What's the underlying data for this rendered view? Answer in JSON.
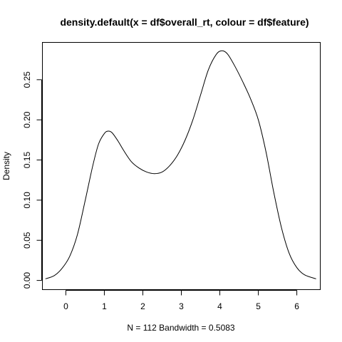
{
  "chart_data": {
    "type": "line",
    "title": "density.default(x = df$overall_rt, colour = df$feature)",
    "xlabel": "N = 112   Bandwidth = 0.5083",
    "ylabel": "Density",
    "xlim": [
      -0.6,
      6.6
    ],
    "ylim": [
      -0.011,
      0.296
    ],
    "x_ticks": [
      0,
      1,
      2,
      3,
      4,
      5,
      6
    ],
    "y_ticks": [
      0.0,
      0.05,
      0.1,
      0.15,
      0.2,
      0.25
    ],
    "x_tick_labels": [
      "0",
      "1",
      "2",
      "3",
      "4",
      "5",
      "6"
    ],
    "y_tick_labels": [
      "0.00",
      "0.05",
      "0.10",
      "0.15",
      "0.20",
      "0.25"
    ],
    "grid": false,
    "series": [
      {
        "color": "#000000",
        "x": [
          -0.53,
          -0.3,
          -0.1,
          0.1,
          0.3,
          0.5,
          0.7,
          0.85,
          1.0,
          1.1,
          1.2,
          1.35,
          1.5,
          1.7,
          1.9,
          2.1,
          2.3,
          2.5,
          2.7,
          2.9,
          3.1,
          3.3,
          3.5,
          3.7,
          3.9,
          4.05,
          4.2,
          4.4,
          4.6,
          4.8,
          5.0,
          5.2,
          5.4,
          5.6,
          5.8,
          6.0,
          6.2,
          6.5
        ],
        "y": [
          0.002,
          0.006,
          0.015,
          0.03,
          0.057,
          0.099,
          0.143,
          0.17,
          0.183,
          0.186,
          0.184,
          0.174,
          0.162,
          0.148,
          0.14,
          0.135,
          0.133,
          0.135,
          0.143,
          0.156,
          0.175,
          0.2,
          0.231,
          0.262,
          0.281,
          0.286,
          0.282,
          0.266,
          0.247,
          0.226,
          0.2,
          0.16,
          0.11,
          0.066,
          0.034,
          0.016,
          0.007,
          0.002
        ]
      }
    ]
  }
}
